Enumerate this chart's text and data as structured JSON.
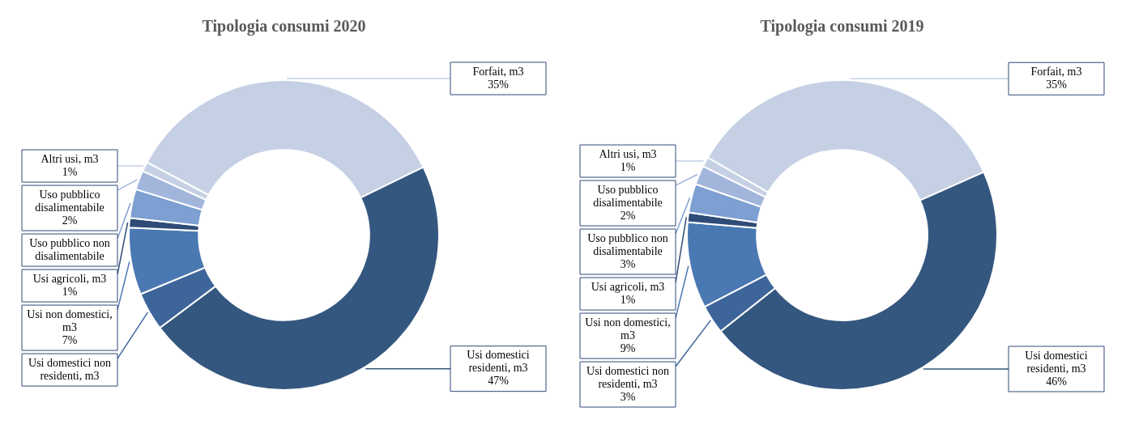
{
  "chart_data": [
    {
      "type": "donut",
      "title": "Tipologia consumi 2020",
      "categories": [
        "Forfait, m3",
        "Usi domestici residenti, m3",
        "Usi domestici non residenti, m3",
        "Usi non domestici, m3",
        "Usi agricoli, m3",
        "Uso pubblico non disalimentabile",
        "Uso pubblico disalimentabile",
        "Altri usi, m3"
      ],
      "values": [
        35,
        47,
        4,
        7,
        1,
        3,
        2,
        1
      ],
      "colors": [
        "#c5d0e4",
        "#34577f",
        "#3e659a",
        "#4a78b2",
        "#2f4c78",
        "#7d9fd2",
        "#a2b6dc",
        "#c5d0e4"
      ],
      "value_labels": [
        "35%",
        "47%",
        null,
        "7%",
        "1%",
        null,
        "2%",
        "1%"
      ]
    },
    {
      "type": "donut",
      "title": "Tipologia consumi 2019",
      "categories": [
        "Forfait, m3",
        "Usi domestici residenti, m3",
        "Usi domestici non residenti, m3",
        "Usi non domestici, m3",
        "Usi agricoli, m3",
        "Uso pubblico non disalimentabile",
        "Uso pubblico disalimentabile",
        "Altri usi, m3"
      ],
      "values": [
        35,
        46,
        3,
        9,
        1,
        3,
        2,
        1
      ],
      "colors": [
        "#c5d0e4",
        "#34577f",
        "#3e659a",
        "#4a78b2",
        "#2f4c78",
        "#7d9fd2",
        "#a2b6dc",
        "#c5d0e4"
      ],
      "value_labels": [
        "35%",
        "46%",
        "3%",
        "9%",
        "1%",
        "3%",
        "2%",
        "1%"
      ]
    }
  ]
}
